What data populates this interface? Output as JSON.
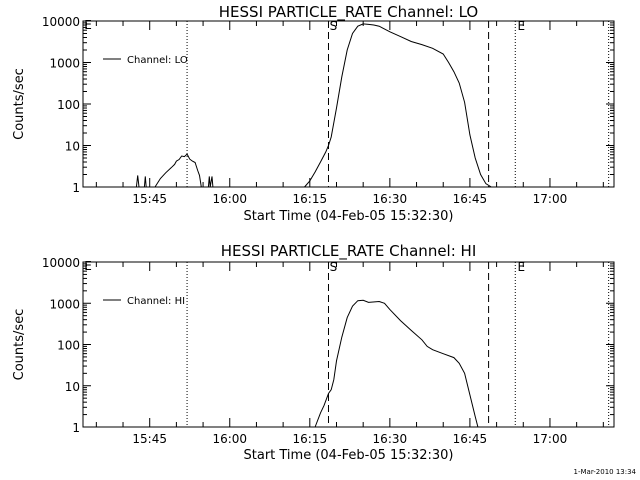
{
  "footer_timestamp": "1-Mar-2010 13:34",
  "chart_data": [
    {
      "type": "line",
      "title": "HESSI PARTICLE_RATE Channel: LO",
      "xlabel": "Start Time (04-Feb-05 15:32:30)",
      "ylabel": "Counts/sec",
      "yscale": "log",
      "ylim": [
        1,
        10000
      ],
      "xlim": [
        "15:32:30",
        "17:12:00"
      ],
      "xticks": [
        "15:45",
        "16:00",
        "16:15",
        "16:30",
        "16:45",
        "17:00"
      ],
      "yticks": [
        "1",
        "10",
        "100",
        "1000",
        "10000"
      ],
      "legend": "top-left",
      "grid": false,
      "markers": {
        "dotted": [
          "15:52:00",
          "16:53:30",
          "17:11:00"
        ],
        "dashed": [
          "16:18:30",
          "16:48:30"
        ],
        "start_label": "S",
        "end_label": "E",
        "left_label": "E"
      },
      "series": [
        {
          "name": "Channel: LO",
          "segments": [
            [
              [
                "15:42:30",
                1
              ],
              [
                "15:42:45",
                1.9
              ],
              [
                "15:43:00",
                1
              ]
            ],
            [
              [
                "15:44:00",
                1
              ],
              [
                "15:44:10",
                1.8
              ],
              [
                "15:44:20",
                1
              ]
            ],
            [
              [
                "15:46:00",
                1
              ],
              [
                "15:47:00",
                1.6
              ],
              [
                "15:48:00",
                2.2
              ],
              [
                "15:49:00",
                2.9
              ],
              [
                "15:49:40",
                3.5
              ],
              [
                "15:50:00",
                4.2
              ],
              [
                "15:50:30",
                4.6
              ],
              [
                "15:51:00",
                5.6
              ],
              [
                "15:51:30",
                5.4
              ],
              [
                "15:52:00",
                6.2
              ],
              [
                "15:52:30",
                4.7
              ],
              [
                "15:53:00",
                4.2
              ],
              [
                "15:53:30",
                3.9
              ],
              [
                "15:54:00",
                2.5
              ],
              [
                "15:54:20",
                1.9
              ],
              [
                "15:54:40",
                1
              ]
            ],
            [
              [
                "15:56:00",
                1
              ],
              [
                "15:56:10",
                1.8
              ],
              [
                "15:56:20",
                1
              ],
              [
                "15:56:40",
                1.8
              ],
              [
                "15:56:50",
                1
              ]
            ],
            [
              [
                "16:14:00",
                1
              ],
              [
                "16:15:00",
                1.4
              ],
              [
                "16:15:30",
                1.8
              ],
              [
                "16:16:00",
                2.3
              ],
              [
                "16:17:00",
                4
              ],
              [
                "16:18:00",
                7
              ],
              [
                "16:18:30",
                10
              ],
              [
                "16:19:00",
                16
              ],
              [
                "16:20:00",
                80
              ],
              [
                "16:21:00",
                450
              ],
              [
                "16:22:00",
                2000
              ],
              [
                "16:23:00",
                5000
              ],
              [
                "16:24:00",
                7500
              ],
              [
                "16:25:00",
                8500
              ],
              [
                "16:26:00",
                8300
              ],
              [
                "16:27:00",
                8000
              ],
              [
                "16:28:00",
                7500
              ],
              [
                "16:30:00",
                5500
              ],
              [
                "16:32:00",
                4200
              ],
              [
                "16:34:00",
                3200
              ],
              [
                "16:36:00",
                2700
              ],
              [
                "16:38:00",
                2200
              ],
              [
                "16:40:00",
                1600
              ],
              [
                "16:41:00",
                1000
              ],
              [
                "16:42:00",
                600
              ],
              [
                "16:43:00",
                320
              ],
              [
                "16:44:00",
                110
              ],
              [
                "16:45:00",
                18
              ],
              [
                "16:46:00",
                5
              ],
              [
                "16:47:00",
                2
              ],
              [
                "16:48:00",
                1.2
              ],
              [
                "16:49:00",
                1
              ]
            ]
          ]
        }
      ]
    },
    {
      "type": "line",
      "title": "HESSI PARTICLE_RATE Channel: HI",
      "xlabel": "Start Time (04-Feb-05 15:32:30)",
      "ylabel": "Counts/sec",
      "yscale": "log",
      "ylim": [
        1,
        10000
      ],
      "xlim": [
        "15:32:30",
        "17:12:00"
      ],
      "xticks": [
        "15:45",
        "16:00",
        "16:15",
        "16:30",
        "16:45",
        "17:00"
      ],
      "yticks": [
        "1",
        "10",
        "100",
        "1000",
        "10000"
      ],
      "legend": "top-left",
      "grid": false,
      "markers": {
        "dotted": [
          "15:52:00",
          "16:53:30",
          "17:11:00"
        ],
        "dashed": [
          "16:18:30",
          "16:48:30"
        ],
        "start_label": "S",
        "end_label": "E",
        "left_label": "E"
      },
      "series": [
        {
          "name": "Channel: HI",
          "segments": [
            [
              [
                "16:16:00",
                1
              ],
              [
                "16:17:00",
                2.2
              ],
              [
                "16:17:40",
                3.3
              ],
              [
                "16:18:30",
                6.5
              ],
              [
                "16:19:00",
                8
              ],
              [
                "16:19:30",
                14
              ],
              [
                "16:20:00",
                40
              ],
              [
                "16:21:00",
                150
              ],
              [
                "16:22:00",
                450
              ],
              [
                "16:23:00",
                850
              ],
              [
                "16:24:00",
                1150
              ],
              [
                "16:25:00",
                1180
              ],
              [
                "16:26:00",
                1050
              ],
              [
                "16:28:00",
                1100
              ],
              [
                "16:29:00",
                1000
              ],
              [
                "16:30:00",
                700
              ],
              [
                "16:32:00",
                380
              ],
              [
                "16:34:00",
                220
              ],
              [
                "16:36:00",
                130
              ],
              [
                "16:37:00",
                90
              ],
              [
                "16:38:00",
                75
              ],
              [
                "16:40:00",
                60
              ],
              [
                "16:42:00",
                48
              ],
              [
                "16:43:00",
                35
              ],
              [
                "16:44:00",
                20
              ],
              [
                "16:45:00",
                6
              ],
              [
                "16:46:00",
                1.8
              ],
              [
                "16:46:30",
                1
              ]
            ]
          ]
        }
      ]
    }
  ]
}
